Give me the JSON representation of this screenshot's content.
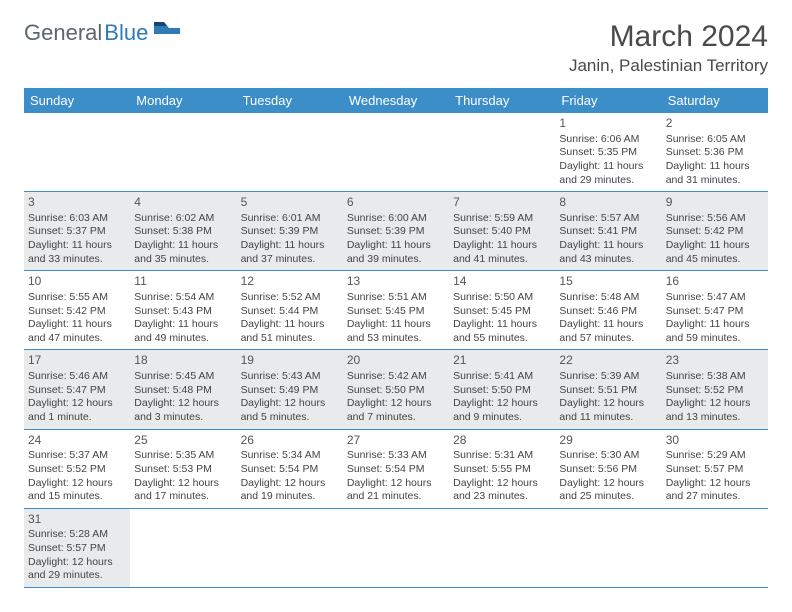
{
  "logo": {
    "text1": "General",
    "text2": "Blue"
  },
  "title": "March 2024",
  "location": "Janin, Palestinian Territory",
  "colors": {
    "header_bg": "#3c8ec9",
    "header_fg": "#ffffff",
    "shaded_cell": "#e9eaeb",
    "border": "#3c8ec9",
    "logo_gray": "#5a6770",
    "logo_blue": "#2e7bb8",
    "text": "#444444"
  },
  "weekdays": [
    "Sunday",
    "Monday",
    "Tuesday",
    "Wednesday",
    "Thursday",
    "Friday",
    "Saturday"
  ],
  "weeks": [
    [
      {
        "day": "",
        "shaded": false,
        "empty": true
      },
      {
        "day": "",
        "shaded": false,
        "empty": true
      },
      {
        "day": "",
        "shaded": false,
        "empty": true
      },
      {
        "day": "",
        "shaded": false,
        "empty": true
      },
      {
        "day": "",
        "shaded": false,
        "empty": true
      },
      {
        "day": "1",
        "shaded": false,
        "sunrise": "Sunrise: 6:06 AM",
        "sunset": "Sunset: 5:35 PM",
        "daylight": "Daylight: 11 hours and 29 minutes."
      },
      {
        "day": "2",
        "shaded": false,
        "sunrise": "Sunrise: 6:05 AM",
        "sunset": "Sunset: 5:36 PM",
        "daylight": "Daylight: 11 hours and 31 minutes."
      }
    ],
    [
      {
        "day": "3",
        "shaded": true,
        "sunrise": "Sunrise: 6:03 AM",
        "sunset": "Sunset: 5:37 PM",
        "daylight": "Daylight: 11 hours and 33 minutes."
      },
      {
        "day": "4",
        "shaded": true,
        "sunrise": "Sunrise: 6:02 AM",
        "sunset": "Sunset: 5:38 PM",
        "daylight": "Daylight: 11 hours and 35 minutes."
      },
      {
        "day": "5",
        "shaded": true,
        "sunrise": "Sunrise: 6:01 AM",
        "sunset": "Sunset: 5:39 PM",
        "daylight": "Daylight: 11 hours and 37 minutes."
      },
      {
        "day": "6",
        "shaded": true,
        "sunrise": "Sunrise: 6:00 AM",
        "sunset": "Sunset: 5:39 PM",
        "daylight": "Daylight: 11 hours and 39 minutes."
      },
      {
        "day": "7",
        "shaded": true,
        "sunrise": "Sunrise: 5:59 AM",
        "sunset": "Sunset: 5:40 PM",
        "daylight": "Daylight: 11 hours and 41 minutes."
      },
      {
        "day": "8",
        "shaded": true,
        "sunrise": "Sunrise: 5:57 AM",
        "sunset": "Sunset: 5:41 PM",
        "daylight": "Daylight: 11 hours and 43 minutes."
      },
      {
        "day": "9",
        "shaded": true,
        "sunrise": "Sunrise: 5:56 AM",
        "sunset": "Sunset: 5:42 PM",
        "daylight": "Daylight: 11 hours and 45 minutes."
      }
    ],
    [
      {
        "day": "10",
        "shaded": false,
        "sunrise": "Sunrise: 5:55 AM",
        "sunset": "Sunset: 5:42 PM",
        "daylight": "Daylight: 11 hours and 47 minutes."
      },
      {
        "day": "11",
        "shaded": false,
        "sunrise": "Sunrise: 5:54 AM",
        "sunset": "Sunset: 5:43 PM",
        "daylight": "Daylight: 11 hours and 49 minutes."
      },
      {
        "day": "12",
        "shaded": false,
        "sunrise": "Sunrise: 5:52 AM",
        "sunset": "Sunset: 5:44 PM",
        "daylight": "Daylight: 11 hours and 51 minutes."
      },
      {
        "day": "13",
        "shaded": false,
        "sunrise": "Sunrise: 5:51 AM",
        "sunset": "Sunset: 5:45 PM",
        "daylight": "Daylight: 11 hours and 53 minutes."
      },
      {
        "day": "14",
        "shaded": false,
        "sunrise": "Sunrise: 5:50 AM",
        "sunset": "Sunset: 5:45 PM",
        "daylight": "Daylight: 11 hours and 55 minutes."
      },
      {
        "day": "15",
        "shaded": false,
        "sunrise": "Sunrise: 5:48 AM",
        "sunset": "Sunset: 5:46 PM",
        "daylight": "Daylight: 11 hours and 57 minutes."
      },
      {
        "day": "16",
        "shaded": false,
        "sunrise": "Sunrise: 5:47 AM",
        "sunset": "Sunset: 5:47 PM",
        "daylight": "Daylight: 11 hours and 59 minutes."
      }
    ],
    [
      {
        "day": "17",
        "shaded": true,
        "sunrise": "Sunrise: 5:46 AM",
        "sunset": "Sunset: 5:47 PM",
        "daylight": "Daylight: 12 hours and 1 minute."
      },
      {
        "day": "18",
        "shaded": true,
        "sunrise": "Sunrise: 5:45 AM",
        "sunset": "Sunset: 5:48 PM",
        "daylight": "Daylight: 12 hours and 3 minutes."
      },
      {
        "day": "19",
        "shaded": true,
        "sunrise": "Sunrise: 5:43 AM",
        "sunset": "Sunset: 5:49 PM",
        "daylight": "Daylight: 12 hours and 5 minutes."
      },
      {
        "day": "20",
        "shaded": true,
        "sunrise": "Sunrise: 5:42 AM",
        "sunset": "Sunset: 5:50 PM",
        "daylight": "Daylight: 12 hours and 7 minutes."
      },
      {
        "day": "21",
        "shaded": true,
        "sunrise": "Sunrise: 5:41 AM",
        "sunset": "Sunset: 5:50 PM",
        "daylight": "Daylight: 12 hours and 9 minutes."
      },
      {
        "day": "22",
        "shaded": true,
        "sunrise": "Sunrise: 5:39 AM",
        "sunset": "Sunset: 5:51 PM",
        "daylight": "Daylight: 12 hours and 11 minutes."
      },
      {
        "day": "23",
        "shaded": true,
        "sunrise": "Sunrise: 5:38 AM",
        "sunset": "Sunset: 5:52 PM",
        "daylight": "Daylight: 12 hours and 13 minutes."
      }
    ],
    [
      {
        "day": "24",
        "shaded": false,
        "sunrise": "Sunrise: 5:37 AM",
        "sunset": "Sunset: 5:52 PM",
        "daylight": "Daylight: 12 hours and 15 minutes."
      },
      {
        "day": "25",
        "shaded": false,
        "sunrise": "Sunrise: 5:35 AM",
        "sunset": "Sunset: 5:53 PM",
        "daylight": "Daylight: 12 hours and 17 minutes."
      },
      {
        "day": "26",
        "shaded": false,
        "sunrise": "Sunrise: 5:34 AM",
        "sunset": "Sunset: 5:54 PM",
        "daylight": "Daylight: 12 hours and 19 minutes."
      },
      {
        "day": "27",
        "shaded": false,
        "sunrise": "Sunrise: 5:33 AM",
        "sunset": "Sunset: 5:54 PM",
        "daylight": "Daylight: 12 hours and 21 minutes."
      },
      {
        "day": "28",
        "shaded": false,
        "sunrise": "Sunrise: 5:31 AM",
        "sunset": "Sunset: 5:55 PM",
        "daylight": "Daylight: 12 hours and 23 minutes."
      },
      {
        "day": "29",
        "shaded": false,
        "sunrise": "Sunrise: 5:30 AM",
        "sunset": "Sunset: 5:56 PM",
        "daylight": "Daylight: 12 hours and 25 minutes."
      },
      {
        "day": "30",
        "shaded": false,
        "sunrise": "Sunrise: 5:29 AM",
        "sunset": "Sunset: 5:57 PM",
        "daylight": "Daylight: 12 hours and 27 minutes."
      }
    ],
    [
      {
        "day": "31",
        "shaded": true,
        "sunrise": "Sunrise: 5:28 AM",
        "sunset": "Sunset: 5:57 PM",
        "daylight": "Daylight: 12 hours and 29 minutes."
      },
      {
        "day": "",
        "shaded": false,
        "empty": true
      },
      {
        "day": "",
        "shaded": false,
        "empty": true
      },
      {
        "day": "",
        "shaded": false,
        "empty": true
      },
      {
        "day": "",
        "shaded": false,
        "empty": true
      },
      {
        "day": "",
        "shaded": false,
        "empty": true
      },
      {
        "day": "",
        "shaded": false,
        "empty": true
      }
    ]
  ]
}
